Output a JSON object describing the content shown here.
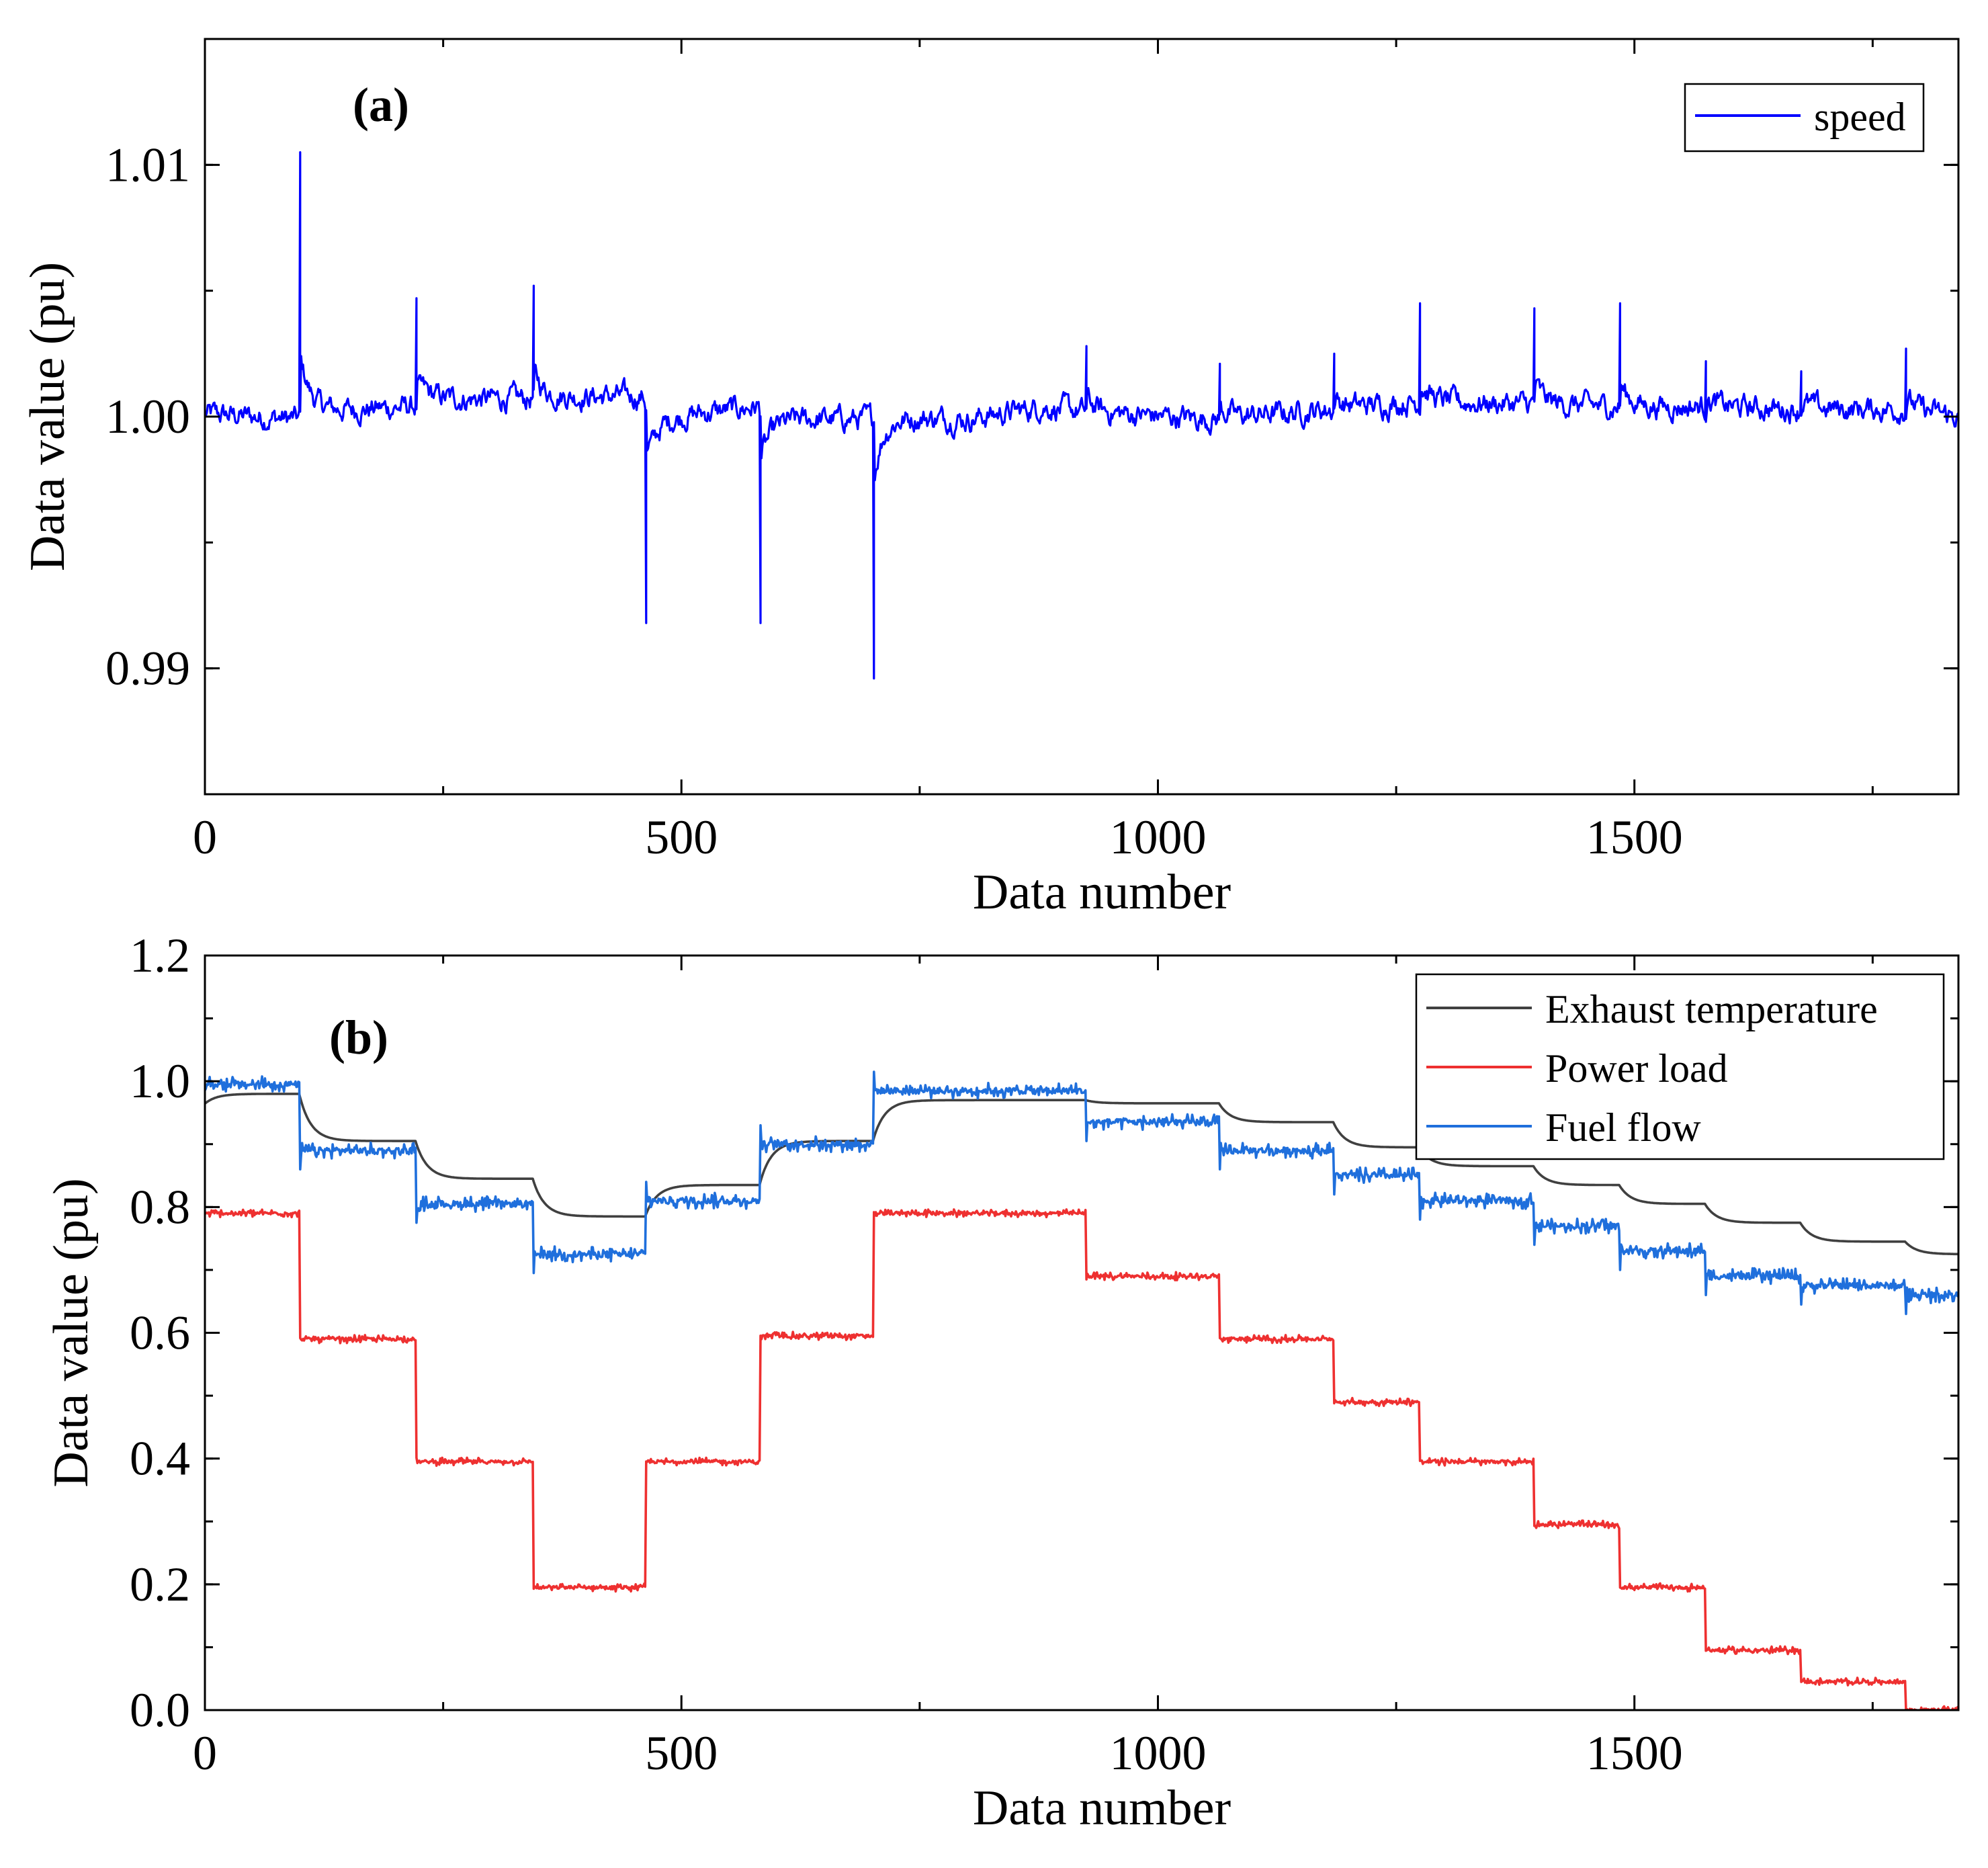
{
  "chart_data": [
    {
      "type": "line",
      "panel_label": "(a)",
      "xlabel": "Data number",
      "ylabel": "Data value (pu)",
      "xlim": [
        0,
        1840
      ],
      "ylim": [
        0.985,
        1.015
      ],
      "xticks": [
        0,
        500,
        1000,
        1500
      ],
      "xtick_labels": [
        "0",
        "500",
        "1000",
        "1500"
      ],
      "yticks": [
        0.99,
        1.0,
        1.01
      ],
      "ytick_labels": [
        "0.99",
        "1.00",
        "1.01"
      ],
      "legend_position": "top-right",
      "series": [
        {
          "name": "speed",
          "color": "#0000ff",
          "baseline": [
            [
              0,
              1.0001
            ],
            [
              100,
              0.9999
            ],
            [
              105,
              1.0002
            ],
            [
              225,
              1.0004
            ],
            [
              232,
              1.0007
            ],
            [
              345,
              1.0007
            ],
            [
              350,
              1.0008
            ],
            [
              460,
              1.0008
            ],
            [
              470,
              0.9999
            ],
            [
              580,
              1.0004
            ],
            [
              590,
              0.9999
            ],
            [
              700,
              0.9999
            ],
            [
              710,
              1.0
            ],
            [
              800,
              0.9999
            ],
            [
              880,
              1.0004
            ],
            [
              920,
              1.0002
            ],
            [
              1060,
              0.9999
            ],
            [
              1180,
              1.0003
            ],
            [
              1270,
              1.0006
            ],
            [
              1390,
              1.0005
            ],
            [
              1480,
              1.0004
            ],
            [
              1570,
              1.0004
            ],
            [
              1670,
              1.0003
            ],
            [
              1780,
              1.0003
            ],
            [
              1840,
              1.0
            ]
          ],
          "events": [
            {
              "x": 100,
              "peak": 1.0105
            },
            {
              "x": 222,
              "peak": 1.0047
            },
            {
              "x": 345,
              "peak": 1.0052
            },
            {
              "x": 463,
              "peak": 0.9918
            },
            {
              "x": 583,
              "peak": 0.9918
            },
            {
              "x": 702,
              "peak": 0.9896
            },
            {
              "x": 925,
              "peak": 1.0028
            },
            {
              "x": 1065,
              "peak": 1.0021
            },
            {
              "x": 1185,
              "peak": 1.0025
            },
            {
              "x": 1275,
              "peak": 1.0045
            },
            {
              "x": 1395,
              "peak": 1.0043
            },
            {
              "x": 1485,
              "peak": 1.0045
            },
            {
              "x": 1575,
              "peak": 1.0022
            },
            {
              "x": 1675,
              "peak": 1.0018
            },
            {
              "x": 1785,
              "peak": 1.0027
            }
          ],
          "noise": 0.0005
        }
      ]
    },
    {
      "type": "line",
      "panel_label": "(b)",
      "xlabel": "Data number",
      "ylabel": "Data value (pu)",
      "xlim": [
        0,
        1840
      ],
      "ylim": [
        0.0,
        1.2
      ],
      "xticks": [
        0,
        500,
        1000,
        1500
      ],
      "xtick_labels": [
        "0",
        "500",
        "1000",
        "1500"
      ],
      "yticks": [
        0.0,
        0.2,
        0.4,
        0.6,
        0.8,
        1.0,
        1.2
      ],
      "ytick_labels": [
        "0.0",
        "0.2",
        "0.4",
        "0.6",
        "0.8",
        "1.0",
        "1.2"
      ],
      "legend_position": "top-right",
      "step_x": [
        0,
        100,
        222,
        345,
        463,
        583,
        702,
        925,
        1065,
        1185,
        1275,
        1395,
        1485,
        1575,
        1675,
        1785
      ],
      "series": [
        {
          "name": "Exhaust temperature",
          "color": "#404040",
          "mode": "smooth",
          "start": 0.963,
          "levels": [
            0.98,
            0.905,
            0.845,
            0.785,
            0.835,
            0.905,
            0.97,
            0.965,
            0.935,
            0.895,
            0.865,
            0.835,
            0.805,
            0.775,
            0.745,
            0.725,
            0.71
          ],
          "noise": 0.0
        },
        {
          "name": "Power load",
          "color": "#ee3030",
          "mode": "step",
          "levels": [
            0.79,
            0.59,
            0.395,
            0.195,
            0.395,
            0.595,
            0.79,
            0.69,
            0.59,
            0.49,
            0.395,
            0.295,
            0.195,
            0.095,
            0.045,
            0.0
          ],
          "noise": 0.004
        },
        {
          "name": "Fuel flow",
          "color": "#1f6fdc",
          "mode": "step",
          "levels": [
            0.995,
            0.89,
            0.805,
            0.725,
            0.81,
            0.9,
            0.985,
            0.935,
            0.89,
            0.85,
            0.81,
            0.77,
            0.73,
            0.69,
            0.675,
            0.66
          ],
          "noise": 0.008
        }
      ]
    }
  ]
}
